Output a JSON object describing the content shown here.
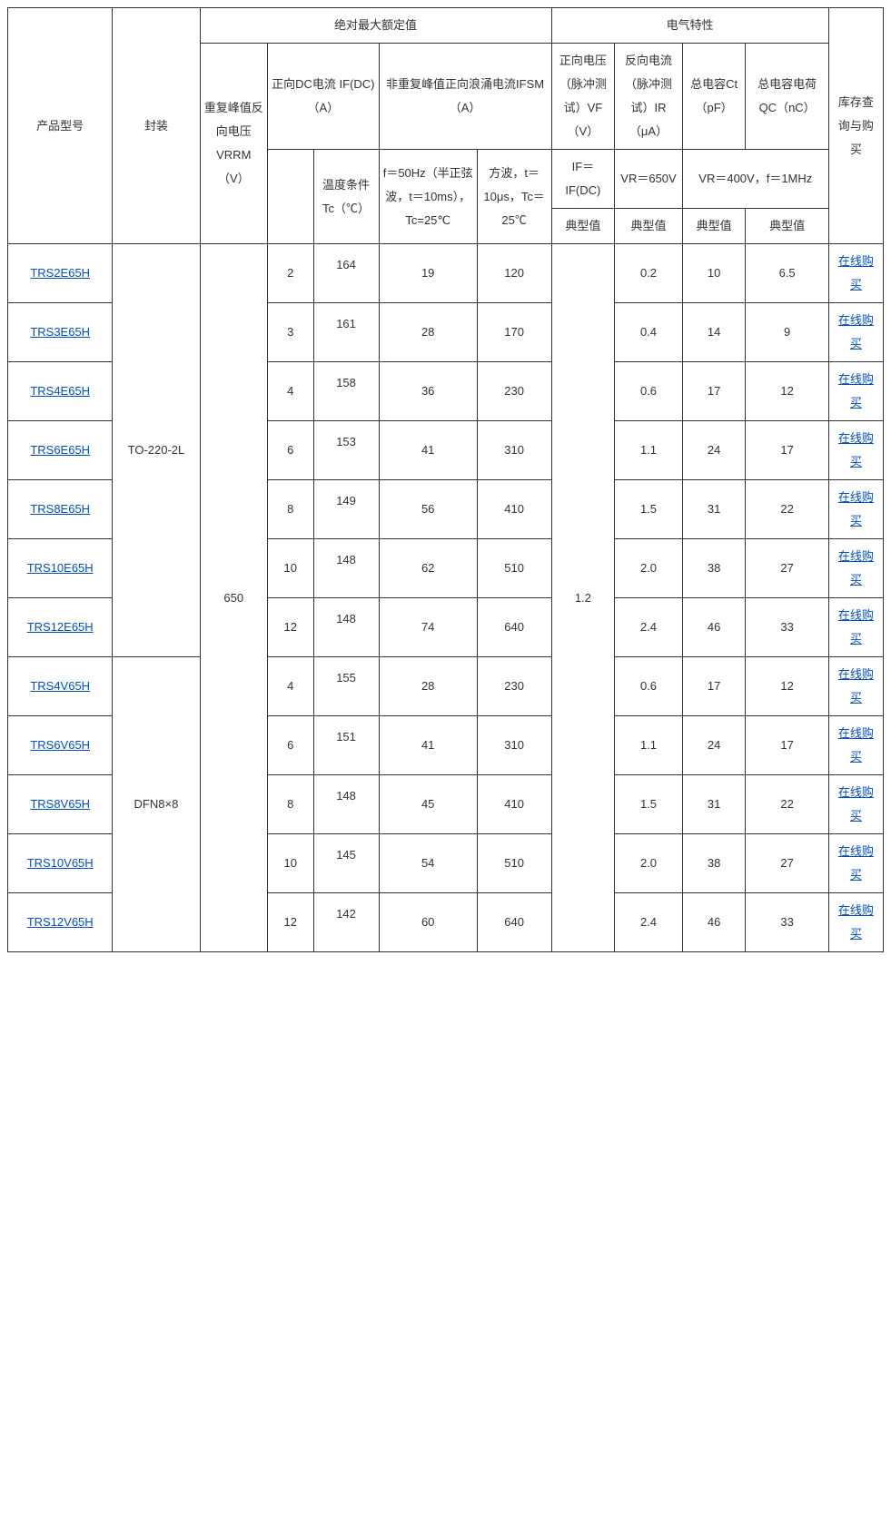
{
  "colors": {
    "border": "#333333",
    "text": "#333333",
    "link": "#0050c8",
    "background": "#ffffff"
  },
  "typography": {
    "font_family": "Microsoft YaHei, PingFang SC, Arial, sans-serif",
    "font_size_pt": 10,
    "line_height": 2.0
  },
  "hdr": {
    "model": "产品型号",
    "package": "封装",
    "abs_max": "绝对最大额定值",
    "elec": "电气特性",
    "vrrm": "重复峰值反向电压VRRM（V）",
    "ifdc": "正向DC电流 IF(DC)（A）",
    "ifsm": "非重复峰值正向浪涌电流IFSM（A）",
    "tc": "温度条件Tc（℃）",
    "ifsm_sine": "f＝50Hz（半正弦波，t＝10ms），Tc=25℃",
    "ifsm_square": "方波，t＝10μs，Tc＝25℃",
    "vf": "正向电压（脉冲测试）VF（V）",
    "ir": "反向电流（脉冲测试）IR（μA）",
    "ct": "总电容Ct（pF）",
    "qc": "总电容电荷QC（nC）",
    "stock": "库存查询与购买",
    "vf_cond": "IF＝IF(DC)",
    "ir_cond": "VR＝650V",
    "ctqc_cond": "VR＝400V，f＝1MHz",
    "typ": "典型值"
  },
  "shared": {
    "vrrm": "650",
    "vf_typ": "1.2",
    "buy_label": "在线购买",
    "pkg1": "TO-220-2L",
    "pkg2": "DFN8×8"
  },
  "rows": [
    {
      "model": "TRS2E65H",
      "ifdc": "2",
      "tc": "164",
      "ifsm1": "19",
      "ifsm2": "120",
      "ir": "0.2",
      "ct": "10",
      "qc": "6.5"
    },
    {
      "model": "TRS3E65H",
      "ifdc": "3",
      "tc": "161",
      "ifsm1": "28",
      "ifsm2": "170",
      "ir": "0.4",
      "ct": "14",
      "qc": "9"
    },
    {
      "model": "TRS4E65H",
      "ifdc": "4",
      "tc": "158",
      "ifsm1": "36",
      "ifsm2": "230",
      "ir": "0.6",
      "ct": "17",
      "qc": "12"
    },
    {
      "model": "TRS6E65H",
      "ifdc": "6",
      "tc": "153",
      "ifsm1": "41",
      "ifsm2": "310",
      "ir": "1.1",
      "ct": "24",
      "qc": "17"
    },
    {
      "model": "TRS8E65H",
      "ifdc": "8",
      "tc": "149",
      "ifsm1": "56",
      "ifsm2": "410",
      "ir": "1.5",
      "ct": "31",
      "qc": "22"
    },
    {
      "model": "TRS10E65H",
      "ifdc": "10",
      "tc": "148",
      "ifsm1": "62",
      "ifsm2": "510",
      "ir": "2.0",
      "ct": "38",
      "qc": "27"
    },
    {
      "model": "TRS12E65H",
      "ifdc": "12",
      "tc": "148",
      "ifsm1": "74",
      "ifsm2": "640",
      "ir": "2.4",
      "ct": "46",
      "qc": "33"
    },
    {
      "model": "TRS4V65H",
      "ifdc": "4",
      "tc": "155",
      "ifsm1": "28",
      "ifsm2": "230",
      "ir": "0.6",
      "ct": "17",
      "qc": "12"
    },
    {
      "model": "TRS6V65H",
      "ifdc": "6",
      "tc": "151",
      "ifsm1": "41",
      "ifsm2": "310",
      "ir": "1.1",
      "ct": "24",
      "qc": "17"
    },
    {
      "model": "TRS8V65H",
      "ifdc": "8",
      "tc": "148",
      "ifsm1": "45",
      "ifsm2": "410",
      "ir": "1.5",
      "ct": "31",
      "qc": "22"
    },
    {
      "model": "TRS10V65H",
      "ifdc": "10",
      "tc": "145",
      "ifsm1": "54",
      "ifsm2": "510",
      "ir": "2.0",
      "ct": "38",
      "qc": "27"
    },
    {
      "model": "TRS12V65H",
      "ifdc": "12",
      "tc": "142",
      "ifsm1": "60",
      "ifsm2": "640",
      "ir": "2.4",
      "ct": "46",
      "qc": "33"
    }
  ]
}
